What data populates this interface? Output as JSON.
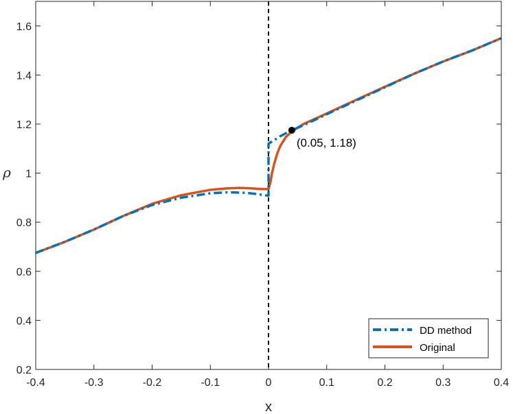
{
  "chart_data": {
    "type": "line",
    "xlabel": "x",
    "ylabel": "ρ",
    "xlim": [
      -0.4,
      0.4
    ],
    "ylim": [
      0.2,
      1.7
    ],
    "x_ticks": [
      -0.4,
      -0.3,
      -0.2,
      -0.1,
      0,
      0.1,
      0.2,
      0.3,
      0.4
    ],
    "x_tick_labels": [
      "-0.4",
      "-0.3",
      "-0.2",
      "-0.1",
      "0",
      "0.1",
      "0.2",
      "0.3",
      "0.4"
    ],
    "y_ticks": [
      0.2,
      0.4,
      0.6,
      0.8,
      1.0,
      1.2,
      1.4,
      1.6
    ],
    "y_tick_labels": [
      "0.2",
      "0.4",
      "0.6",
      "0.8",
      "1",
      "1.2",
      "1.4",
      "1.6"
    ],
    "grid": false,
    "legend_position": "bottom-right",
    "series": [
      {
        "name": "DD method",
        "style": "dash-dot",
        "color": "#0072BD",
        "x": [
          -0.4,
          -0.35,
          -0.3,
          -0.25,
          -0.2,
          -0.15,
          -0.1,
          -0.07,
          -0.04,
          -0.02,
          0.0,
          0.0,
          0.01,
          0.02,
          0.03,
          0.04,
          0.06,
          0.1,
          0.15,
          0.2,
          0.25,
          0.3,
          0.35,
          0.4
        ],
        "y": [
          0.675,
          0.72,
          0.77,
          0.825,
          0.87,
          0.9,
          0.918,
          0.922,
          0.92,
          0.915,
          0.908,
          1.12,
          1.135,
          1.15,
          1.163,
          1.175,
          1.195,
          1.24,
          1.295,
          1.35,
          1.405,
          1.455,
          1.5,
          1.55
        ]
      },
      {
        "name": "Original",
        "style": "solid",
        "color": "#D95319",
        "x": [
          -0.4,
          -0.35,
          -0.3,
          -0.25,
          -0.2,
          -0.15,
          -0.1,
          -0.07,
          -0.05,
          -0.03,
          -0.01,
          0.0,
          0.003,
          0.006,
          0.01,
          0.015,
          0.02,
          0.03,
          0.04,
          0.06,
          0.1,
          0.15,
          0.2,
          0.25,
          0.3,
          0.35,
          0.4
        ],
        "y": [
          0.675,
          0.72,
          0.77,
          0.825,
          0.875,
          0.91,
          0.932,
          0.938,
          0.94,
          0.938,
          0.935,
          0.935,
          0.96,
          1.0,
          1.04,
          1.08,
          1.11,
          1.148,
          1.17,
          1.2,
          1.243,
          1.298,
          1.352,
          1.405,
          1.455,
          1.5,
          1.55
        ]
      }
    ],
    "vertical_line": {
      "x": 0,
      "style": "dashed",
      "color": "#000000"
    },
    "annotation": {
      "x": 0.04,
      "y": 1.175,
      "text": "(0.05, 1.18)"
    }
  }
}
